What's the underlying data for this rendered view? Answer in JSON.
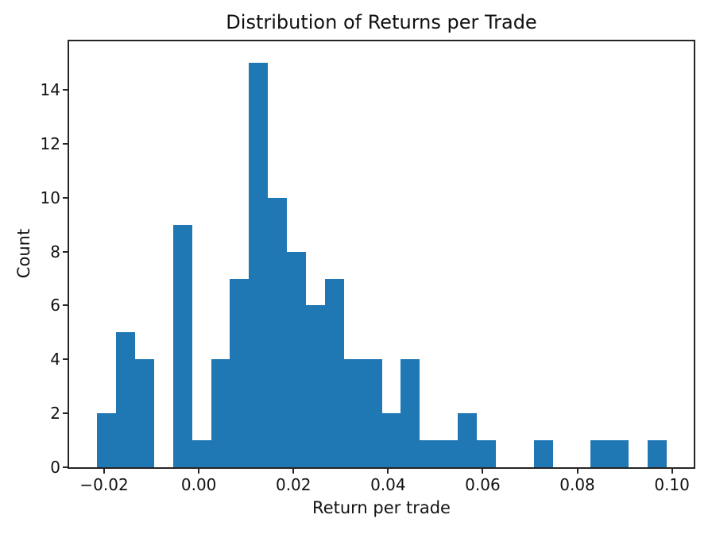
{
  "chart_data": {
    "type": "bar",
    "subtype": "histogram",
    "title": "Distribution of Returns per Trade",
    "xlabel": "Return per trade",
    "ylabel": "Count",
    "bar_color": "#1f77b4",
    "axis_color": "#262626",
    "text_color": "#111111",
    "background_color": "#ffffff",
    "grid": false,
    "legend": false,
    "xlim": [
      -0.0274,
      0.1046
    ],
    "ylim": [
      0,
      15.8
    ],
    "x_ticks": [
      {
        "value": -0.02,
        "label": "−0.02"
      },
      {
        "value": 0.0,
        "label": "0.00"
      },
      {
        "value": 0.02,
        "label": "0.02"
      },
      {
        "value": 0.04,
        "label": "0.04"
      },
      {
        "value": 0.06,
        "label": "0.06"
      },
      {
        "value": 0.08,
        "label": "0.08"
      },
      {
        "value": 0.1,
        "label": "0.10"
      }
    ],
    "y_ticks": [
      {
        "value": 0,
        "label": "0"
      },
      {
        "value": 2,
        "label": "2"
      },
      {
        "value": 4,
        "label": "4"
      },
      {
        "value": 6,
        "label": "6"
      },
      {
        "value": 8,
        "label": "8"
      },
      {
        "value": 10,
        "label": "10"
      },
      {
        "value": 12,
        "label": "12"
      },
      {
        "value": 14,
        "label": "14"
      }
    ],
    "bin_edges": [
      -0.0215,
      -0.01749,
      -0.01347,
      -0.00946,
      -0.00545,
      -0.00143,
      0.00258,
      0.00659,
      0.01061,
      0.01462,
      0.01863,
      0.02265,
      0.02666,
      0.03067,
      0.03469,
      0.0387,
      0.04271,
      0.04673,
      0.05074,
      0.05475,
      0.05877,
      0.06278,
      0.06679,
      0.07081,
      0.07482,
      0.07883,
      0.08285,
      0.08686,
      0.09087,
      0.09489,
      0.0989
    ],
    "counts": [
      2,
      5,
      4,
      0,
      9,
      1,
      4,
      7,
      15,
      10,
      8,
      6,
      7,
      4,
      4,
      2,
      4,
      1,
      1,
      2,
      1,
      0,
      0,
      1,
      0,
      0,
      1,
      1,
      0,
      1
    ]
  }
}
